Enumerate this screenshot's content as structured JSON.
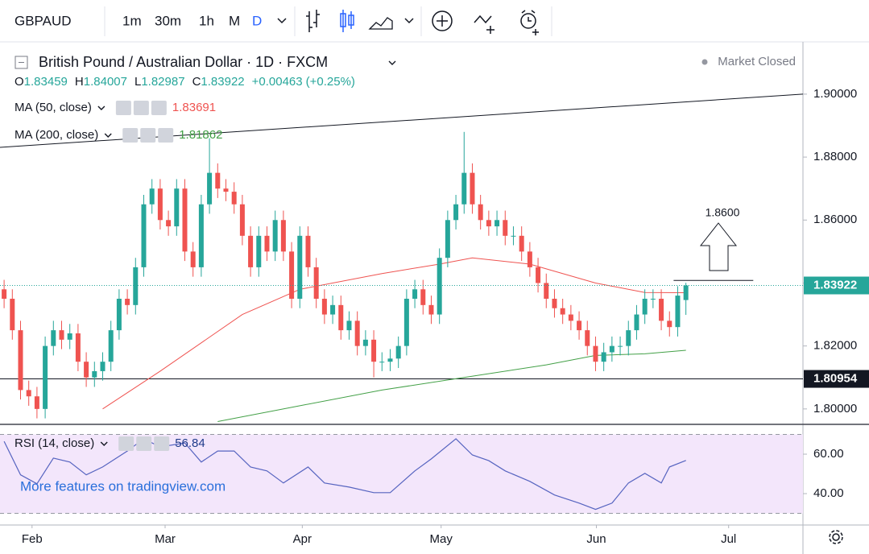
{
  "toolbar": {
    "symbol": "GBPAUD",
    "intervals": [
      "1m",
      "30m",
      "1h",
      "M",
      "D"
    ]
  },
  "watermark": "More features on tradingview.com",
  "chart_data": [
    {
      "type": "candlestick",
      "title": "British Pound / Australian Dollar · 1D · FXCM",
      "status": "Market Closed",
      "ohlc_labels": [
        "O",
        "H",
        "L",
        "C"
      ],
      "change": {
        "value": 0.00463,
        "label": "+0.00463"
      },
      "change_pct": {
        "value": 0.25,
        "label": "(+0.25%)"
      },
      "up_color": "#26a69a",
      "down_color": "#ef5350",
      "candles": [
        [
          1.838,
          1.841,
          1.832,
          1.835
        ],
        [
          1.835,
          1.838,
          1.822,
          1.825
        ],
        [
          1.825,
          1.828,
          1.803,
          1.806
        ],
        [
          1.806,
          1.809,
          1.801,
          1.804
        ],
        [
          1.804,
          1.807,
          1.797,
          1.8
        ],
        [
          1.8,
          1.823,
          1.797,
          1.82
        ],
        [
          1.82,
          1.828,
          1.817,
          1.825
        ],
        [
          1.825,
          1.828,
          1.819,
          1.822
        ],
        [
          1.822,
          1.827,
          1.819,
          1.824
        ],
        [
          1.824,
          1.827,
          1.812,
          1.815
        ],
        [
          1.815,
          1.818,
          1.807,
          1.81
        ],
        [
          1.81,
          1.815,
          1.807,
          1.812
        ],
        [
          1.812,
          1.818,
          1.809,
          1.815
        ],
        [
          1.815,
          1.828,
          1.812,
          1.825
        ],
        [
          1.825,
          1.838,
          1.822,
          1.835
        ],
        [
          1.835,
          1.838,
          1.83,
          1.833
        ],
        [
          1.833,
          1.848,
          1.83,
          1.845
        ],
        [
          1.845,
          1.868,
          1.842,
          1.865
        ],
        [
          1.865,
          1.873,
          1.862,
          1.87
        ],
        [
          1.87,
          1.873,
          1.857,
          1.86
        ],
        [
          1.86,
          1.863,
          1.855,
          1.858
        ],
        [
          1.858,
          1.873,
          1.855,
          1.87
        ],
        [
          1.87,
          1.873,
          1.847,
          1.85
        ],
        [
          1.85,
          1.853,
          1.842,
          1.845
        ],
        [
          1.845,
          1.868,
          1.842,
          1.865
        ],
        [
          1.865,
          1.886,
          1.862,
          1.875
        ],
        [
          1.875,
          1.878,
          1.867,
          1.87
        ],
        [
          1.87,
          1.873,
          1.866,
          1.869
        ],
        [
          1.869,
          1.872,
          1.862,
          1.865
        ],
        [
          1.865,
          1.868,
          1.852,
          1.855
        ],
        [
          1.855,
          1.858,
          1.842,
          1.845
        ],
        [
          1.845,
          1.858,
          1.842,
          1.855
        ],
        [
          1.855,
          1.858,
          1.847,
          1.85
        ],
        [
          1.85,
          1.863,
          1.847,
          1.86
        ],
        [
          1.86,
          1.863,
          1.847,
          1.85
        ],
        [
          1.85,
          1.853,
          1.832,
          1.835
        ],
        [
          1.835,
          1.858,
          1.832,
          1.855
        ],
        [
          1.855,
          1.858,
          1.842,
          1.845
        ],
        [
          1.845,
          1.848,
          1.832,
          1.835
        ],
        [
          1.835,
          1.838,
          1.827,
          1.83
        ],
        [
          1.83,
          1.836,
          1.827,
          1.833
        ],
        [
          1.833,
          1.836,
          1.822,
          1.825
        ],
        [
          1.825,
          1.831,
          1.822,
          1.828
        ],
        [
          1.828,
          1.831,
          1.817,
          1.82
        ],
        [
          1.82,
          1.825,
          1.817,
          1.822
        ],
        [
          1.822,
          1.825,
          1.81,
          1.815
        ],
        [
          1.815,
          1.818,
          1.812,
          1.815
        ],
        [
          1.815,
          1.819,
          1.812,
          1.816
        ],
        [
          1.816,
          1.823,
          1.813,
          1.82
        ],
        [
          1.82,
          1.838,
          1.817,
          1.835
        ],
        [
          1.835,
          1.841,
          1.832,
          1.838
        ],
        [
          1.838,
          1.841,
          1.83,
          1.833
        ],
        [
          1.833,
          1.836,
          1.827,
          1.83
        ],
        [
          1.83,
          1.851,
          1.827,
          1.848
        ],
        [
          1.848,
          1.863,
          1.845,
          1.86
        ],
        [
          1.86,
          1.868,
          1.857,
          1.865
        ],
        [
          1.865,
          1.888,
          1.862,
          1.875
        ],
        [
          1.875,
          1.878,
          1.862,
          1.865
        ],
        [
          1.865,
          1.868,
          1.857,
          1.86
        ],
        [
          1.86,
          1.863,
          1.855,
          1.858
        ],
        [
          1.858,
          1.863,
          1.855,
          1.86
        ],
        [
          1.86,
          1.863,
          1.852,
          1.855
        ],
        [
          1.855,
          1.858,
          1.852,
          1.855
        ],
        [
          1.855,
          1.858,
          1.847,
          1.85
        ],
        [
          1.85,
          1.853,
          1.842,
          1.845
        ],
        [
          1.845,
          1.848,
          1.837,
          1.84
        ],
        [
          1.84,
          1.843,
          1.832,
          1.835
        ],
        [
          1.835,
          1.838,
          1.829,
          1.832
        ],
        [
          1.832,
          1.835,
          1.827,
          1.83
        ],
        [
          1.83,
          1.833,
          1.825,
          1.828
        ],
        [
          1.828,
          1.831,
          1.822,
          1.825
        ],
        [
          1.825,
          1.828,
          1.817,
          1.82
        ],
        [
          1.82,
          1.823,
          1.812,
          1.815
        ],
        [
          1.815,
          1.821,
          1.812,
          1.818
        ],
        [
          1.818,
          1.823,
          1.815,
          1.82
        ],
        [
          1.82,
          1.823,
          1.817,
          1.82
        ],
        [
          1.82,
          1.828,
          1.817,
          1.825
        ],
        [
          1.825,
          1.833,
          1.822,
          1.83
        ],
        [
          1.83,
          1.838,
          1.827,
          1.835
        ],
        [
          1.835,
          1.838,
          1.832,
          1.835
        ],
        [
          1.835,
          1.838,
          1.825,
          1.828
        ],
        [
          1.828,
          1.831,
          1.823,
          1.826
        ],
        [
          1.826,
          1.839,
          1.823,
          1.836
        ],
        [
          1.83459,
          1.84007,
          1.82987,
          1.83922
        ]
      ],
      "xlim": [
        -0.5,
        97.25
      ],
      "xticks": [
        {
          "value": 3.4,
          "label": "Feb"
        },
        {
          "value": 19.6,
          "label": "Mar"
        },
        {
          "value": 36.3,
          "label": "Apr"
        },
        {
          "value": 53.2,
          "label": "May"
        },
        {
          "value": 72.1,
          "label": "Jun"
        },
        {
          "value": 88.2,
          "label": "Jul"
        }
      ],
      "ylim": [
        1.7951,
        1.9166
      ],
      "yticks": [
        {
          "value": 1.8,
          "label": "1.80000"
        },
        {
          "value": 1.82,
          "label": "1.82000"
        },
        {
          "value": 1.84,
          "label": "1.84000"
        },
        {
          "value": 1.86,
          "label": "1.86000"
        },
        {
          "value": 1.88,
          "label": "1.88000"
        },
        {
          "value": 1.9,
          "label": "1.90000"
        }
      ],
      "levels": [
        1.80954
      ],
      "trendline": {
        "x": [
          -0.5,
          97.25
        ],
        "values": [
          1.8831,
          1.9
        ]
      },
      "target_line": {
        "x": [
          81.5,
          91.2
        ],
        "values": [
          1.8408,
          1.8408
        ]
      },
      "annotation": "1.8600",
      "series": [
        {
          "name": "MA (50, close)",
          "color": "#ef5350",
          "x": [
            12,
            19,
            29,
            36,
            46,
            53,
            57,
            64,
            72,
            78,
            83
          ],
          "values": [
            1.8,
            1.812,
            1.83,
            1.838,
            1.843,
            1.846,
            1.848,
            1.846,
            1.84,
            1.837,
            1.83691
          ]
        },
        {
          "name": "MA (200, close)",
          "color": "#43a047",
          "x": [
            26,
            36,
            46,
            56,
            66,
            72,
            78,
            83
          ],
          "values": [
            1.796,
            1.801,
            1.806,
            1.81,
            1.814,
            1.817,
            1.8175,
            1.81862
          ]
        }
      ]
    },
    {
      "type": "line",
      "xlim": [
        -0.5,
        97.25
      ],
      "ylim": [
        24.5,
        74.7
      ],
      "yticks": [
        {
          "value": 40,
          "label": "40.00"
        },
        {
          "value": 60,
          "label": "60.00"
        }
      ],
      "band": [
        30,
        70
      ],
      "band_color": "#f3e6fb",
      "series": [
        {
          "name": "RSI (14, close)",
          "color": "#5664c0",
          "x": [
            0,
            2,
            4,
            6,
            8,
            10,
            12,
            15,
            17,
            19,
            22,
            24,
            26,
            28,
            30,
            32,
            34,
            37,
            39,
            42,
            45,
            47,
            50,
            52,
            55,
            57,
            59,
            61,
            64,
            67,
            70,
            72,
            74,
            76,
            78,
            80,
            81,
            83
          ],
          "values": [
            66.5,
            49.5,
            45,
            58,
            56,
            49.5,
            53.5,
            61.6,
            67.8,
            63.7,
            65.7,
            56,
            61.6,
            61.6,
            53.5,
            51.5,
            45.4,
            53.5,
            45.4,
            43.3,
            40.5,
            40.5,
            51.5,
            57.6,
            67.8,
            59.6,
            56.7,
            51.5,
            46.2,
            39.3,
            35.2,
            32,
            35.2,
            45.4,
            50.3,
            45.4,
            53.5,
            56.84
          ]
        }
      ]
    }
  ]
}
